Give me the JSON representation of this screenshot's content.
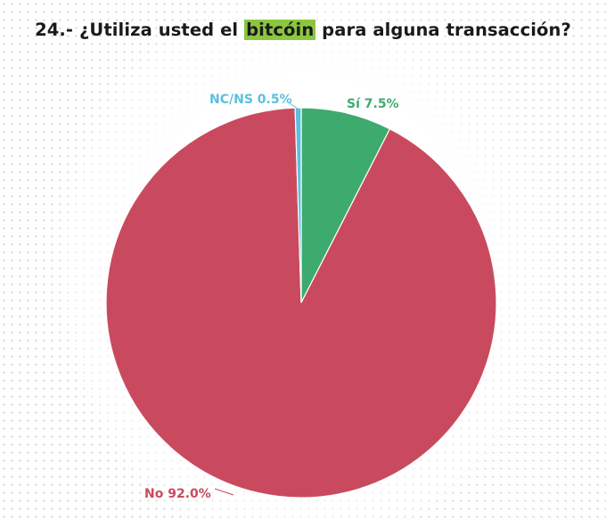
{
  "title": {
    "prefix": "24.- ¿Utiliza usted el ",
    "highlight": "bitcóin",
    "suffix": " para alguna transacción?"
  },
  "colors": {
    "highlight": "#8cc63f"
  },
  "chart_data": {
    "type": "pie",
    "start_angle_deg": 0,
    "direction": "clockwise",
    "slices": [
      {
        "label": "Sí",
        "value": 7.5,
        "display": "Sí 7.5%",
        "color": "#3daa6e"
      },
      {
        "label": "No",
        "value": 92.0,
        "display": "No 92.0%",
        "color": "#c94a5e"
      },
      {
        "label": "NC/NS",
        "value": 0.5,
        "display": "NC/NS 0.5%",
        "color": "#5bc0de"
      }
    ]
  }
}
